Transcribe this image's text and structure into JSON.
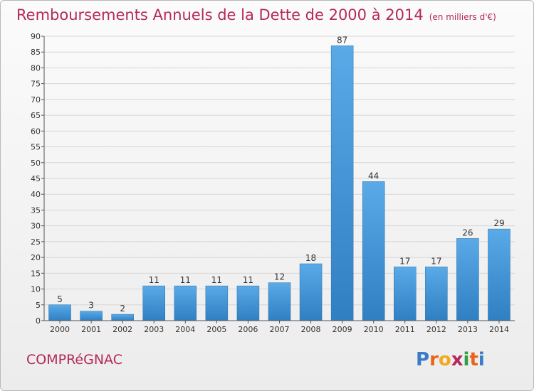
{
  "header": {
    "title": "Remboursements Annuels de la Dette de 2000 à 2014",
    "unit": "(en milliers d'€)"
  },
  "footer": {
    "commune": "COMPRéGNAC",
    "logo_letters": [
      "P",
      "r",
      "o",
      "x",
      "i",
      "t",
      "i"
    ],
    "logo_colors": [
      "#3a7bc8",
      "#e8641b",
      "#f3a81f",
      "#b5285a",
      "#2f9e44",
      "#e8641b",
      "#3a7bc8"
    ]
  },
  "colors": {
    "bar_top": "#5aaae8",
    "bar_bottom": "#2f7fc2",
    "accent": "#b5285a"
  },
  "chart_data": {
    "type": "bar",
    "title": "Remboursements Annuels de la Dette de 2000 à 2014",
    "xlabel": "",
    "ylabel": "",
    "ylim": [
      0,
      90
    ],
    "yticks": [
      0,
      5,
      10,
      15,
      20,
      25,
      30,
      35,
      40,
      45,
      50,
      55,
      60,
      65,
      70,
      75,
      80,
      85,
      90
    ],
    "grid": true,
    "categories": [
      "2000",
      "2001",
      "2002",
      "2003",
      "2004",
      "2005",
      "2006",
      "2007",
      "2008",
      "2009",
      "2010",
      "2011",
      "2012",
      "2013",
      "2014"
    ],
    "values": [
      5,
      3,
      2,
      11,
      11,
      11,
      11,
      12,
      18,
      87,
      44,
      17,
      17,
      26,
      29
    ]
  }
}
